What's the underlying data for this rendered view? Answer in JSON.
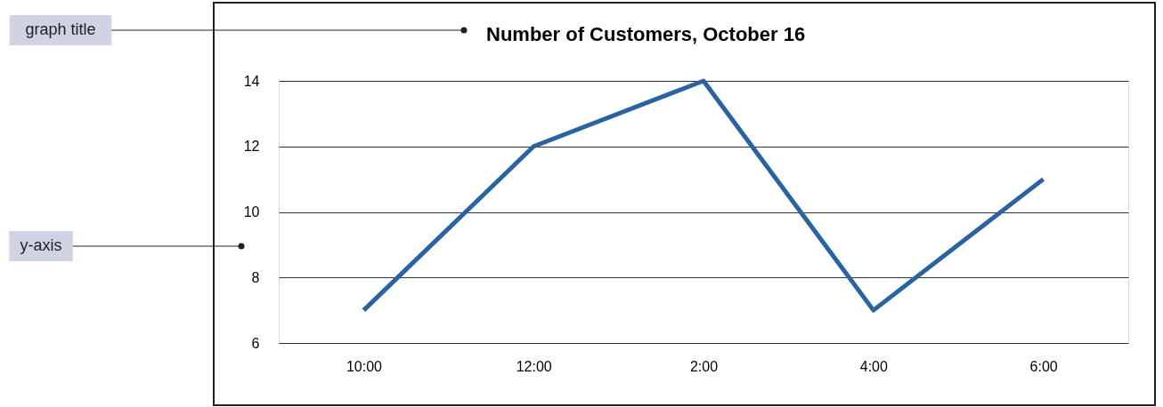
{
  "chart_data": {
    "type": "line",
    "title": "Number of Customers, October 16",
    "categories": [
      "10:00",
      "12:00",
      "2:00",
      "4:00",
      "6:00"
    ],
    "values": [
      7,
      12,
      14,
      7,
      11
    ],
    "color": "#2a64a0",
    "ylim": [
      6,
      14
    ],
    "yticks": [
      6,
      8,
      10,
      12,
      14
    ],
    "grid": "y",
    "annotations": [
      "graph title",
      "y-axis"
    ]
  }
}
